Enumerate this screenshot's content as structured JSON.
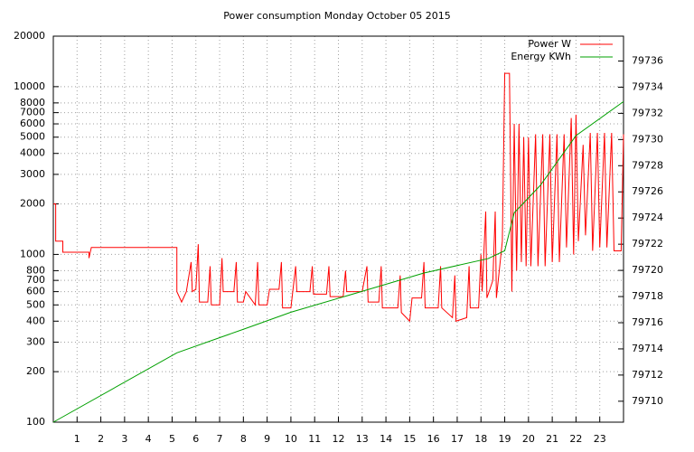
{
  "chart_data": {
    "type": "line",
    "title": "Power consumption Monday October 05 2015",
    "xlim": [
      0,
      24
    ],
    "xticks": [
      1,
      2,
      3,
      4,
      5,
      6,
      7,
      8,
      9,
      10,
      11,
      12,
      13,
      14,
      15,
      16,
      17,
      18,
      19,
      20,
      21,
      22,
      23
    ],
    "ylim": [
      100,
      20000
    ],
    "yticks": [
      100,
      200,
      300,
      400,
      500,
      600,
      700,
      800,
      1000,
      2000,
      3000,
      4000,
      5000,
      6000,
      7000,
      8000,
      10000,
      20000
    ],
    "ylog": true,
    "y2lim": [
      79708.4,
      79737.9
    ],
    "y2ticks": [
      79710,
      79712,
      79714,
      79716,
      79718,
      79720,
      79722,
      79724,
      79726,
      79728,
      79730,
      79732,
      79734,
      79736
    ],
    "grid": true,
    "legend": "top-right",
    "series": [
      {
        "name": "Power W",
        "color": "#ff0000",
        "x": [
          0,
          0.1,
          0.1,
          0.4,
          0.4,
          1.5,
          1.5,
          1.6,
          5.2,
          5.2,
          5.4,
          5.6,
          5.8,
          5.85,
          6.0,
          6.1,
          6.15,
          6.5,
          6.6,
          6.65,
          7.0,
          7.1,
          7.15,
          7.6,
          7.7,
          7.75,
          8.0,
          8.1,
          8.5,
          8.6,
          8.65,
          9.0,
          9.1,
          9.5,
          9.6,
          9.65,
          10.0,
          10.2,
          10.25,
          10.8,
          10.9,
          10.95,
          11.5,
          11.6,
          11.65,
          12.2,
          12.3,
          12.35,
          13.0,
          13.2,
          13.25,
          13.7,
          13.8,
          13.85,
          14.5,
          14.6,
          14.65,
          15.0,
          15.1,
          15.5,
          15.6,
          15.65,
          16.2,
          16.3,
          16.35,
          16.8,
          16.9,
          16.95,
          17.4,
          17.5,
          17.55,
          17.9,
          18.0,
          18.05,
          18.2,
          18.25,
          18.5,
          18.6,
          18.65,
          18.9,
          19.0,
          19.2,
          19.3,
          19.4,
          19.5,
          19.6,
          19.7,
          19.8,
          19.9,
          20.0,
          20.1,
          20.3,
          20.4,
          20.6,
          20.7,
          20.9,
          21.0,
          21.2,
          21.3,
          21.5,
          21.6,
          21.8,
          21.9,
          22.0,
          22.1,
          22.3,
          22.4,
          22.6,
          22.7,
          22.9,
          23.0,
          23.2,
          23.3,
          23.5,
          23.6,
          23.9,
          24
        ],
        "values": [
          2000,
          2000,
          1200,
          1200,
          1030,
          1030,
          950,
          1100,
          1100,
          600,
          520,
          600,
          900,
          600,
          620,
          1150,
          520,
          520,
          850,
          500,
          500,
          950,
          600,
          600,
          900,
          520,
          520,
          600,
          500,
          900,
          500,
          500,
          620,
          620,
          900,
          480,
          480,
          850,
          600,
          600,
          850,
          580,
          580,
          850,
          560,
          560,
          800,
          600,
          600,
          850,
          520,
          520,
          850,
          480,
          480,
          750,
          450,
          400,
          550,
          550,
          900,
          480,
          480,
          850,
          480,
          420,
          750,
          400,
          420,
          850,
          480,
          480,
          1000,
          600,
          1800,
          550,
          700,
          1800,
          550,
          1200,
          12000,
          12000,
          600,
          6000,
          800,
          6000,
          900,
          5000,
          850,
          5000,
          850,
          5200,
          850,
          5200,
          850,
          5200,
          900,
          5200,
          900,
          5200,
          1100,
          6500,
          1000,
          6800,
          1200,
          4500,
          1300,
          5300,
          1050,
          5300,
          1100,
          5300,
          1100,
          5300,
          1050,
          1050,
          5200
        ]
      },
      {
        "name": "Energy KWh",
        "color": "#00a000",
        "axis": "y2",
        "x": [
          0,
          5.2,
          8,
          10,
          13,
          15.6,
          18.3,
          19.0,
          19.4,
          20.5,
          22,
          24
        ],
        "values": [
          79708.4,
          79713.7,
          79715.5,
          79716.8,
          79718.4,
          79719.8,
          79720.9,
          79721.5,
          79724.4,
          79726.5,
          79730.3,
          79732.9
        ]
      }
    ]
  }
}
